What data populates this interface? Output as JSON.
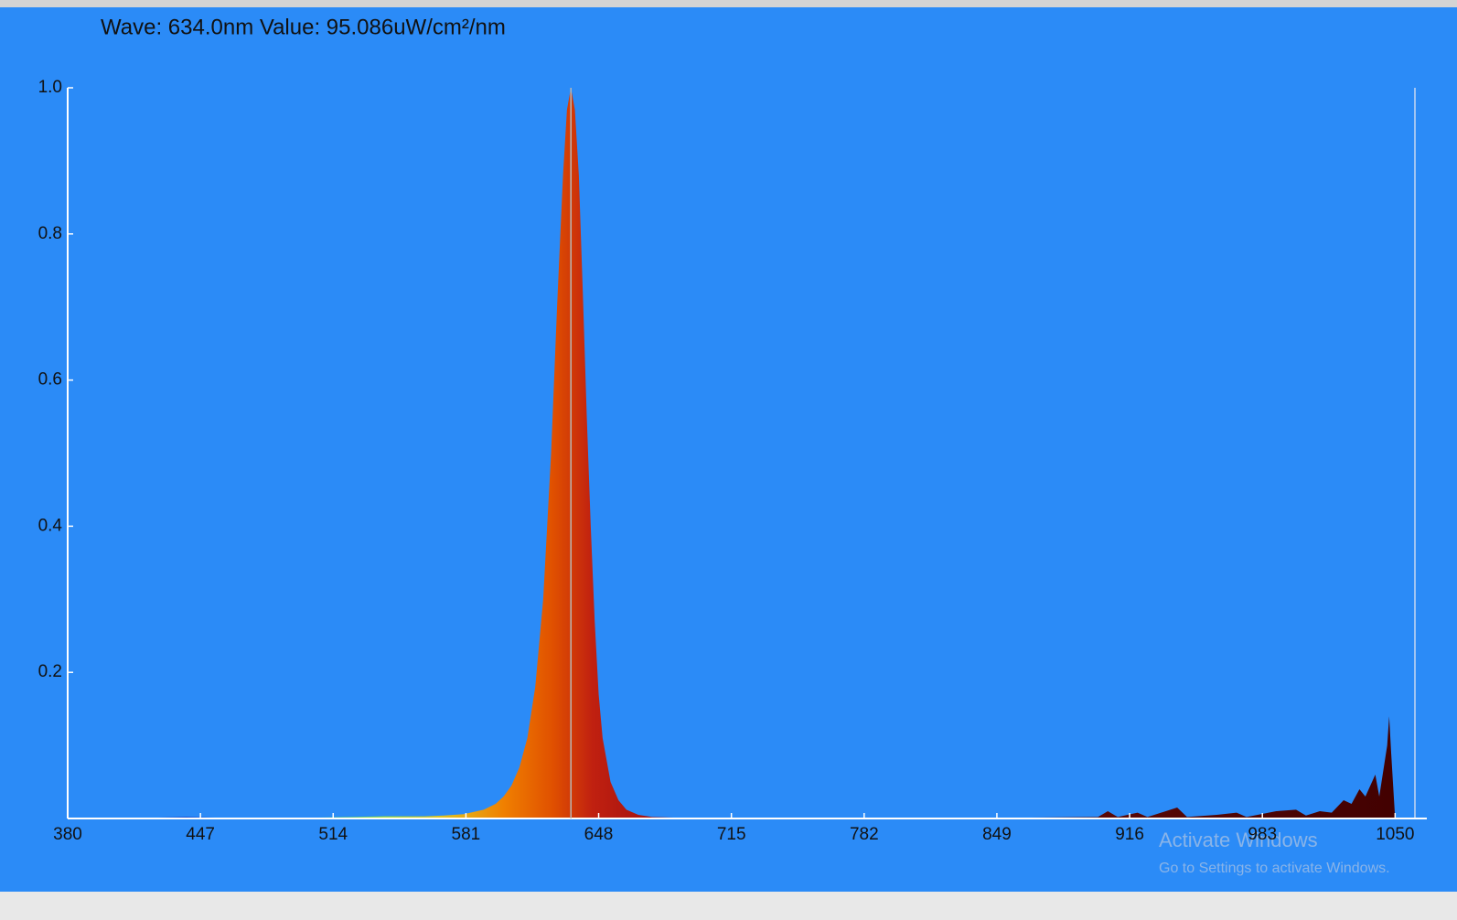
{
  "chart_data": {
    "type": "area",
    "title": "Wave: 634.0nm Value: 95.086uW/cm²/nm",
    "watermark": {
      "title": "Activate Windows",
      "subtitle": "Go to Settings to activate Windows."
    },
    "cursor_x": 634,
    "x": [
      380,
      400,
      420,
      440,
      460,
      480,
      500,
      520,
      540,
      560,
      570,
      580,
      590,
      596,
      600,
      604,
      608,
      612,
      616,
      620,
      624,
      627,
      630,
      632,
      634,
      636,
      638,
      640,
      642,
      644,
      646,
      648,
      650,
      654,
      658,
      662,
      668,
      675,
      690,
      720,
      760,
      800,
      850,
      900,
      905,
      910,
      920,
      925,
      940,
      945,
      960,
      970,
      975,
      990,
      1000,
      1005,
      1012,
      1018,
      1024,
      1028,
      1032,
      1035,
      1040,
      1042,
      1046,
      1047,
      1048,
      1050
    ],
    "values": [
      0,
      0,
      0.001,
      0.002,
      0.001,
      0.001,
      0.001,
      0.002,
      0.003,
      0.003,
      0.004,
      0.006,
      0.012,
      0.02,
      0.03,
      0.045,
      0.07,
      0.11,
      0.18,
      0.3,
      0.5,
      0.7,
      0.88,
      0.97,
      1.0,
      0.97,
      0.88,
      0.72,
      0.55,
      0.4,
      0.27,
      0.17,
      0.11,
      0.05,
      0.025,
      0.012,
      0.005,
      0.002,
      0.001,
      0.001,
      0.001,
      0.001,
      0.001,
      0.002,
      0.01,
      0.002,
      0.008,
      0.002,
      0.015,
      0.002,
      0.005,
      0.008,
      0.002,
      0.01,
      0.012,
      0.004,
      0.01,
      0.008,
      0.025,
      0.02,
      0.04,
      0.03,
      0.06,
      0.03,
      0.1,
      0.14,
      0.09,
      0
    ],
    "fill_stops": [
      {
        "value": 380,
        "color": "#202080"
      },
      {
        "value": 450,
        "color": "#1030c0"
      },
      {
        "value": 500,
        "color": "#20c0a0"
      },
      {
        "value": 540,
        "color": "#a0e040"
      },
      {
        "value": 570,
        "color": "#e0c020"
      },
      {
        "value": 600,
        "color": "#f08000"
      },
      {
        "value": 625,
        "color": "#e05000"
      },
      {
        "value": 645,
        "color": "#c02010"
      },
      {
        "value": 680,
        "color": "#a01010"
      },
      {
        "value": 750,
        "color": "#701010"
      },
      {
        "value": 1066,
        "color": "#400000"
      }
    ],
    "xlim": [
      380,
      1066
    ],
    "ylim": [
      0,
      1
    ],
    "xticks": [
      380,
      447,
      514,
      581,
      648,
      715,
      782,
      849,
      916,
      983,
      1050
    ],
    "yticks": [
      0.2,
      0.4,
      0.6,
      0.8,
      {
        "value": 1,
        "label": "1.0"
      }
    ]
  }
}
